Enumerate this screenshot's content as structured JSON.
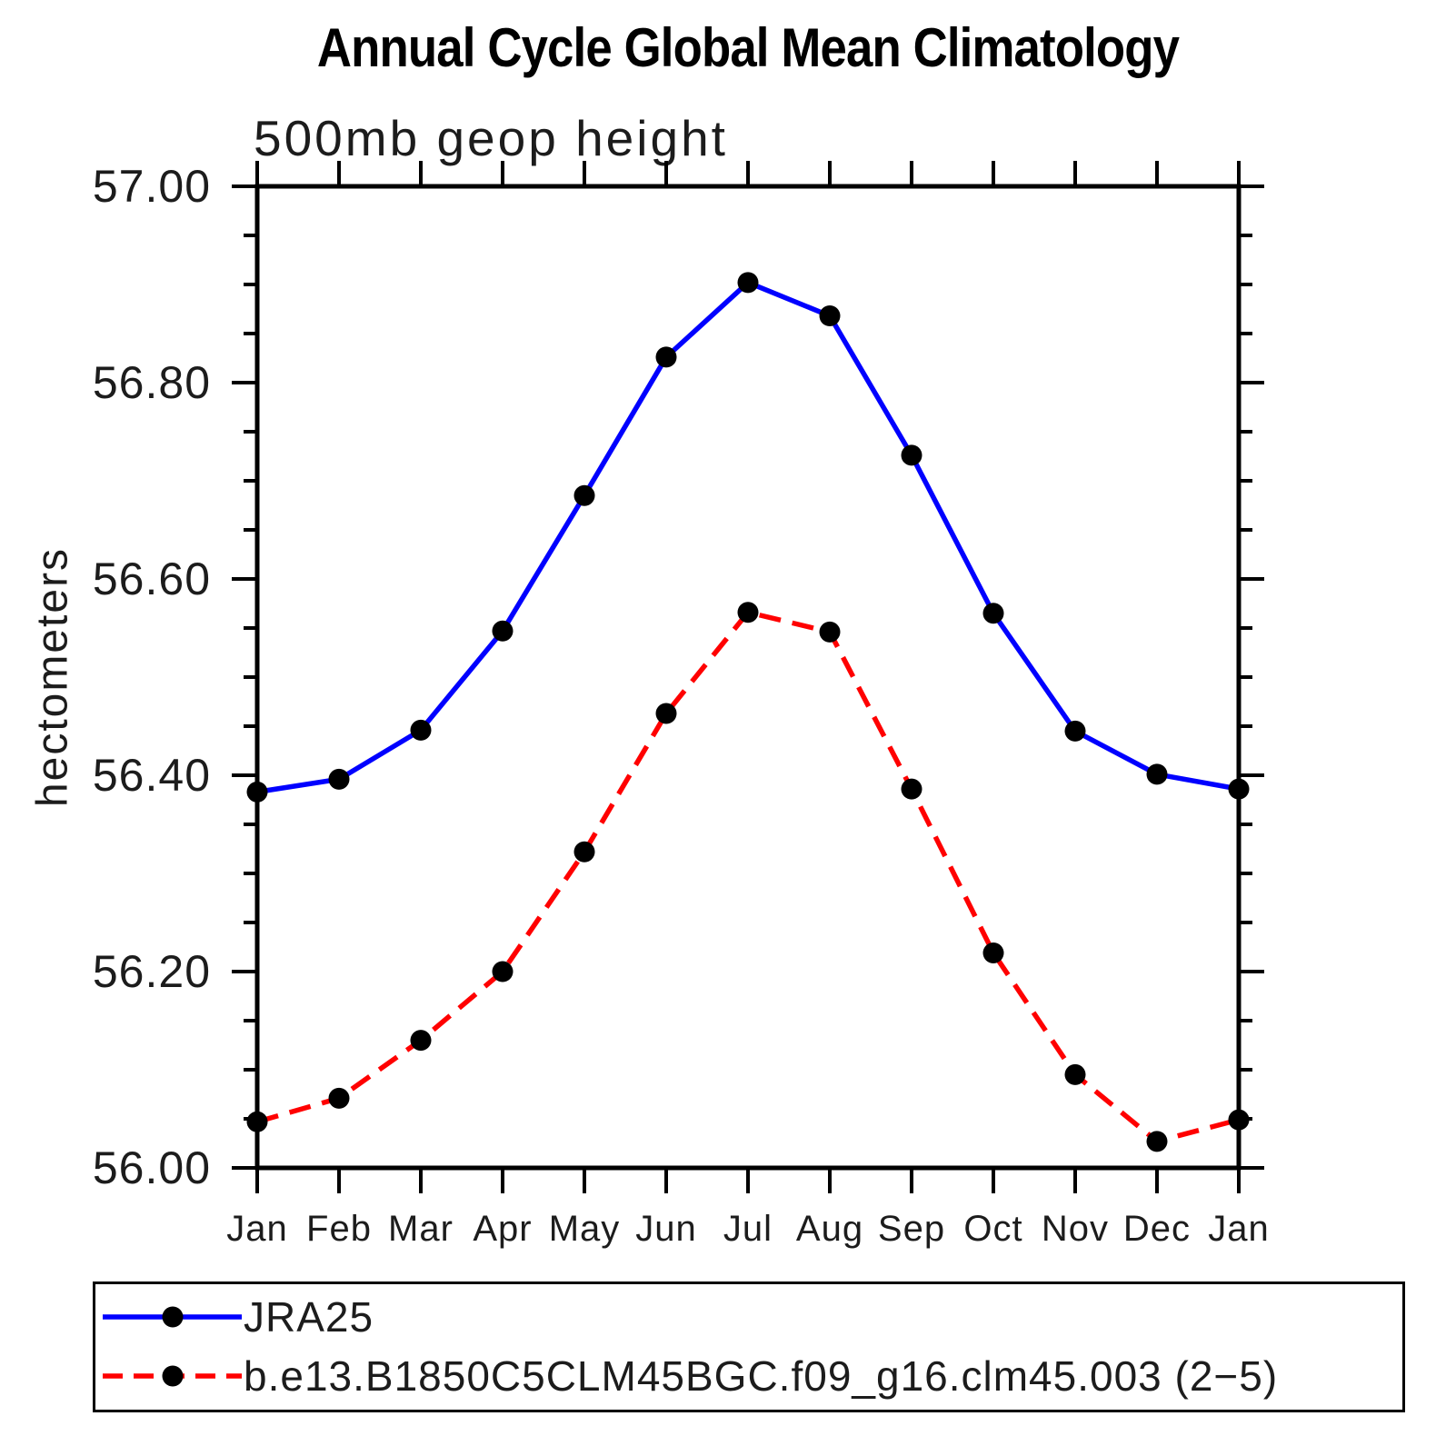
{
  "title": "Annual Cycle Global Mean Climatology",
  "chart_data": {
    "type": "line",
    "title": "Annual Cycle Global Mean Climatology",
    "subtitle": "500mb geop height",
    "ylabel": "hectometers",
    "xlabel": "",
    "categories": [
      "Jan",
      "Feb",
      "Mar",
      "Apr",
      "May",
      "Jun",
      "Jul",
      "Aug",
      "Sep",
      "Oct",
      "Nov",
      "Dec",
      "Jan"
    ],
    "series": [
      {
        "name": "JRA25",
        "color": "#0000ff",
        "line_style": "solid",
        "marker": "filled-circle",
        "marker_color": "#000000",
        "values": [
          56.383,
          56.396,
          56.446,
          56.547,
          56.685,
          56.826,
          56.902,
          56.868,
          56.726,
          56.565,
          56.445,
          56.401,
          56.386
        ]
      },
      {
        "name": "b.e13.B1850C5CLM45BGC.f09_g16.clm45.003 (2−5)",
        "color": "#ff0000",
        "line_style": "dashed",
        "marker": "filled-circle",
        "marker_color": "#000000",
        "values": [
          56.047,
          56.071,
          56.13,
          56.2,
          56.322,
          56.463,
          56.566,
          56.546,
          56.386,
          56.219,
          56.095,
          56.027,
          56.049
        ]
      }
    ],
    "ylim": [
      56.0,
      57.0
    ],
    "y_major_ticks": [
      {
        "label": "57.00",
        "value": 57.0
      },
      {
        "label": "56.80",
        "value": 56.8
      },
      {
        "label": "56.60",
        "value": 56.6
      },
      {
        "label": "56.40",
        "value": 56.4
      },
      {
        "label": "56.20",
        "value": 56.2
      },
      {
        "label": "56.00",
        "value": 56.0
      }
    ],
    "y_minor_tick_interval": 0.05,
    "grid": false,
    "legend_position": "bottom",
    "axis_color": "#000000"
  }
}
